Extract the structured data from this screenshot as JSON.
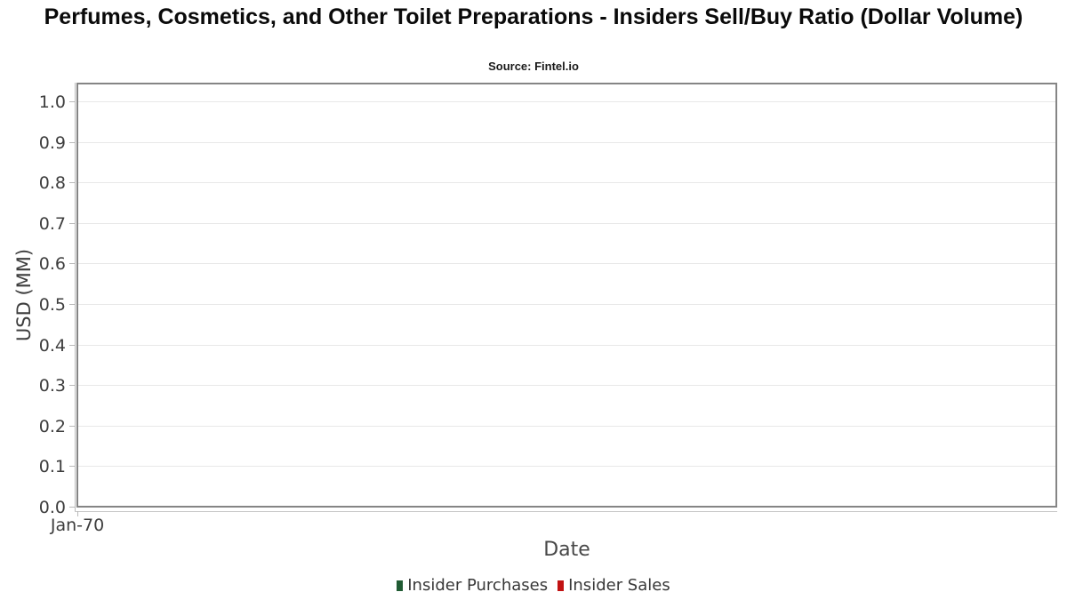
{
  "chart_data": {
    "type": "line",
    "title": "Perfumes, Cosmetics, and Other Toilet Preparations - Insiders Sell/Buy Ratio (Dollar Volume)",
    "subtitle": "Source: Fintel.io",
    "xlabel": "Date",
    "ylabel": "USD (MM)",
    "ylim": [
      0.0,
      1.0
    ],
    "y_ticks": [
      "0.0",
      "0.1",
      "0.2",
      "0.3",
      "0.4",
      "0.5",
      "0.6",
      "0.7",
      "0.8",
      "0.9",
      "1.0"
    ],
    "x_ticks": [
      "Jan-70"
    ],
    "grid": "horizontal",
    "legend_position": "bottom",
    "series": [
      {
        "name": "Insider Purchases",
        "color": "#205b33",
        "values": []
      },
      {
        "name": "Insider Sales",
        "color": "#c11212",
        "values": []
      }
    ]
  },
  "colors": {
    "plot_border": "#858585",
    "gridline": "#e8e8e8",
    "axis_line": "#b9b9b9",
    "tick_text": "#3d3d3d",
    "title_text": "#0a0a0a"
  }
}
